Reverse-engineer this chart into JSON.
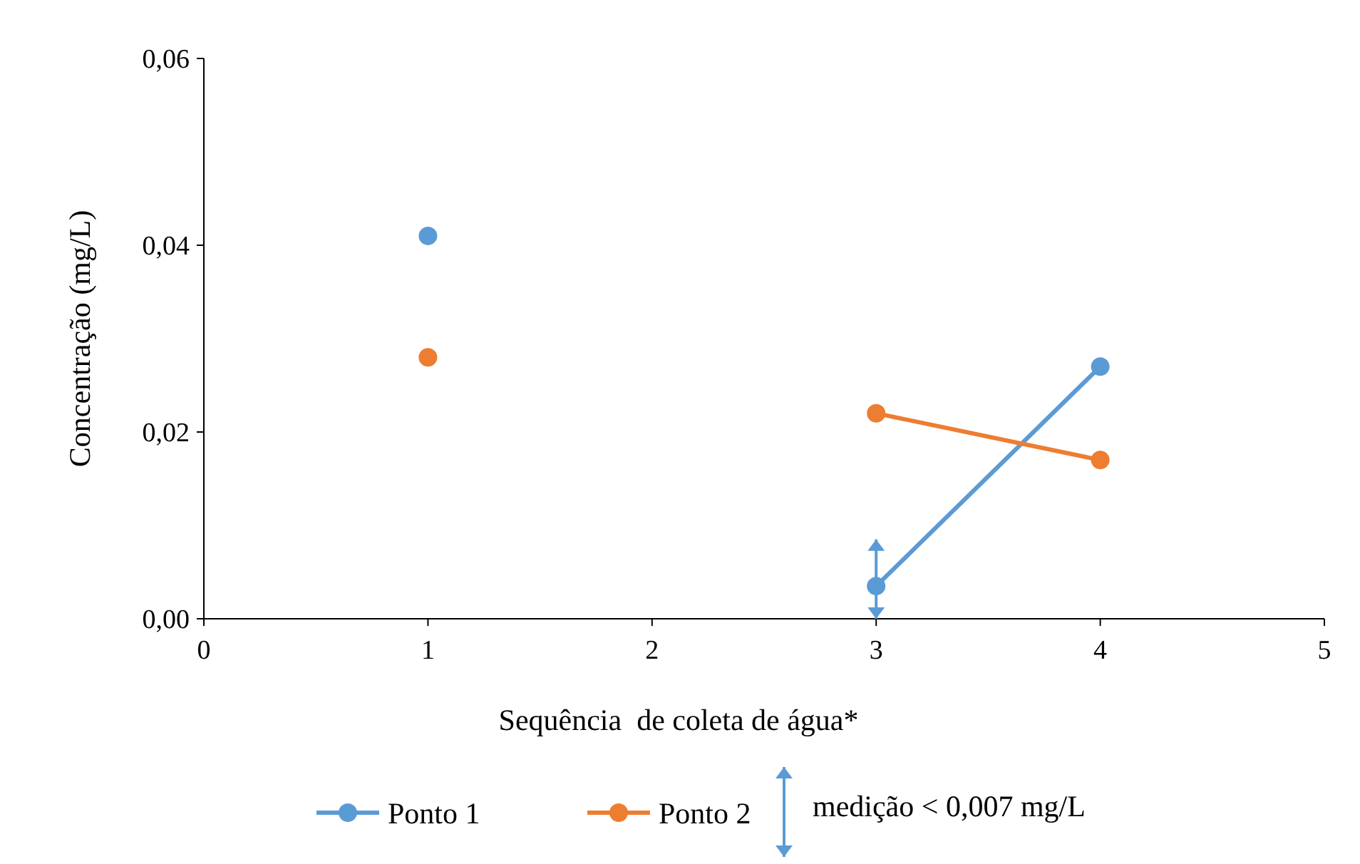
{
  "chart_data": {
    "type": "line",
    "xlabel": "Sequência  de coleta de água*",
    "ylabel": "Concentração (mg/L)",
    "x": [
      1,
      2,
      3,
      4
    ],
    "series": [
      {
        "name": "Ponto 1",
        "color": "#5b9bd5",
        "values": [
          0.041,
          null,
          0.0035,
          0.027
        ],
        "errors": [
          null,
          null,
          [
            0,
            0.0085
          ],
          null
        ]
      },
      {
        "name": "Ponto 2",
        "color": "#ed7d31",
        "values": [
          0.028,
          null,
          0.022,
          0.017
        ]
      }
    ],
    "xlim": [
      0,
      5
    ],
    "xticks": [
      0,
      1,
      2,
      3,
      4,
      5
    ],
    "ylim": [
      0,
      0.06
    ],
    "yticks": [
      {
        "value": 0,
        "label": "0,00"
      },
      {
        "value": 0.02,
        "label": "0,02"
      },
      {
        "value": 0.04,
        "label": "0,04"
      },
      {
        "value": 0.06,
        "label": "0,06"
      }
    ],
    "annotations": [
      "medição < 0,007 mg/L"
    ],
    "grid": false,
    "legend": "bottom",
    "marker": "circle",
    "line_style": "solid"
  }
}
